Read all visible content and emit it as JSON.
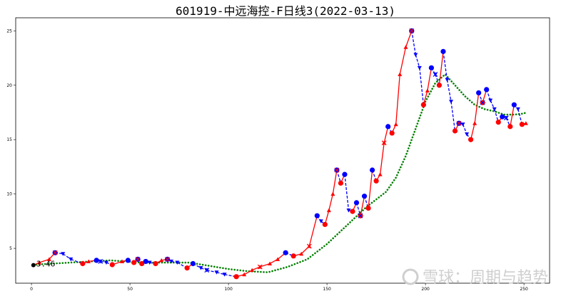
{
  "chart_data": {
    "type": "line",
    "title": "601919-中远海控-F日线3(2022-03-13)",
    "xlim": [
      -8,
      263
    ],
    "ylim": [
      1.8,
      26.2
    ],
    "x_ticks": [
      0,
      50,
      100,
      150,
      200,
      250
    ],
    "y_ticks": [
      5,
      10,
      15,
      20,
      25
    ],
    "grid": false,
    "annotation": {
      "text": "3.46",
      "x": 1,
      "y": 3.46
    },
    "series": [
      {
        "line_style": "solid red / dashed blue",
        "up_color": "#ff0000",
        "down_color": "#0000ff",
        "x": [
          1,
          4,
          9,
          12,
          16,
          20,
          26,
          29,
          33,
          35,
          38,
          41,
          46,
          49,
          52,
          54,
          56,
          58,
          60,
          63,
          66,
          69,
          71,
          74,
          79,
          82,
          86,
          89,
          94,
          98,
          104,
          108,
          112,
          116,
          121,
          125,
          129,
          133,
          137,
          141,
          145,
          147,
          149,
          151,
          153,
          155,
          157,
          159,
          161,
          163,
          165,
          167,
          169,
          171,
          173,
          175,
          177,
          179,
          181,
          183,
          185,
          187,
          190,
          193,
          195,
          197,
          199,
          201,
          203,
          205,
          207,
          209,
          211,
          213,
          215,
          217,
          219,
          221,
          223,
          225,
          227,
          229,
          231,
          233,
          235,
          237,
          239,
          241,
          243,
          245,
          247,
          249,
          251
        ],
        "values": [
          3.46,
          3.7,
          4.0,
          4.6,
          4.5,
          4.0,
          3.6,
          3.8,
          3.9,
          3.8,
          3.7,
          3.5,
          3.8,
          3.9,
          3.7,
          4.0,
          3.6,
          3.8,
          3.7,
          3.6,
          3.9,
          4.0,
          3.8,
          3.7,
          3.2,
          3.6,
          3.2,
          3.0,
          2.8,
          2.6,
          2.4,
          2.6,
          3.0,
          3.3,
          3.6,
          4.0,
          4.6,
          4.3,
          4.5,
          5.2,
          8.0,
          7.5,
          7.2,
          8.5,
          10.0,
          12.2,
          11.0,
          11.8,
          8.5,
          8.4,
          9.2,
          8.0,
          9.8,
          8.7,
          12.2,
          11.2,
          11.8,
          14.7,
          16.2,
          15.6,
          16.4,
          21.0,
          23.5,
          25.0,
          22.8,
          21.6,
          18.2,
          19.5,
          21.6,
          21.0,
          20.0,
          23.1,
          20.5,
          18.5,
          15.8,
          16.5,
          16.4,
          15.5,
          15.0,
          16.5,
          19.3,
          18.4,
          19.6,
          18.6,
          17.8,
          16.6,
          17.1,
          17.0,
          16.2,
          18.2,
          17.8,
          16.4,
          16.5
        ]
      },
      {
        "name": "",
        "line_style": "dotted",
        "color": "#008000",
        "x": [
          1,
          20,
          40,
          55,
          70,
          80,
          90,
          100,
          110,
          120,
          130,
          140,
          150,
          160,
          170,
          180,
          185,
          190,
          195,
          200,
          205,
          210,
          215,
          220,
          225,
          230,
          235,
          240,
          245,
          250,
          251
        ],
        "values": [
          3.5,
          3.7,
          3.9,
          3.7,
          3.7,
          3.7,
          3.4,
          3.1,
          2.9,
          2.8,
          3.3,
          4.0,
          5.4,
          7.1,
          8.8,
          10.2,
          11.5,
          13.5,
          16.0,
          18.5,
          20.2,
          21.0,
          20.0,
          19.0,
          18.2,
          17.8,
          17.6,
          17.3,
          17.3,
          17.4,
          17.5
        ]
      }
    ]
  },
  "watermark": {
    "text": "雪球：周期与趋势"
  }
}
